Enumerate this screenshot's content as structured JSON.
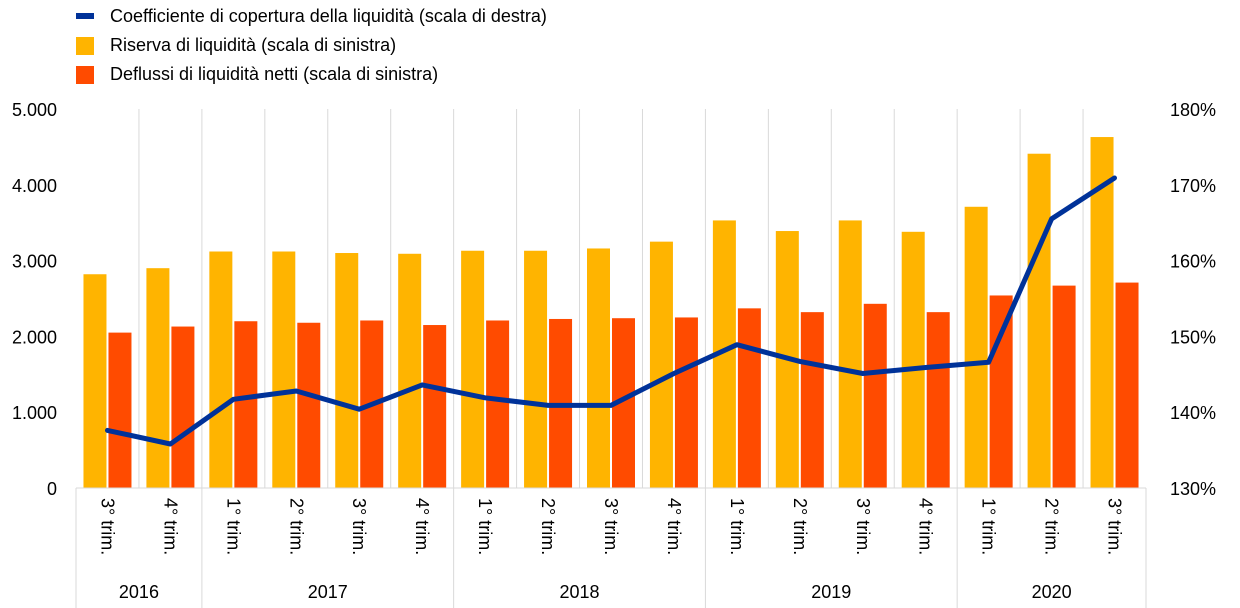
{
  "chart_data": {
    "type": "bar",
    "categories": [
      "3° trim.",
      "4° trim.",
      "1° trim.",
      "2° trim.",
      "3° trim.",
      "4° trim.",
      "1° trim.",
      "2° trim.",
      "3° trim.",
      "4° trim.",
      "1° trim.",
      "2° trim.",
      "3° trim.",
      "4° trim.",
      "1° trim.",
      "2° trim.",
      "3° trim."
    ],
    "year_groups": [
      {
        "label": "2016",
        "count": 2
      },
      {
        "label": "2017",
        "count": 4
      },
      {
        "label": "2018",
        "count": 4
      },
      {
        "label": "2019",
        "count": 4
      },
      {
        "label": "2020",
        "count": 3
      }
    ],
    "series": [
      {
        "name": "Coefficiente di copertura della liquidità (scala di destra)",
        "type": "line",
        "axis": "right",
        "color": "#003299",
        "values": [
          137.6,
          135.8,
          141.7,
          142.8,
          140.4,
          143.6,
          141.9,
          140.9,
          140.9,
          145.1,
          148.9,
          146.7,
          145.1,
          145.9,
          146.6,
          165.5,
          170.9
        ]
      },
      {
        "name": "Riserva di liquidità (scala di sinistra)",
        "type": "bar",
        "axis": "left",
        "color": "#FFB400",
        "values": [
          2820,
          2900,
          3120,
          3120,
          3100,
          3090,
          3130,
          3130,
          3160,
          3250,
          3530,
          3390,
          3530,
          3380,
          3710,
          4410,
          4630
        ]
      },
      {
        "name": "Deflussi di liquidità netti (scala di sinistra)",
        "type": "bar",
        "axis": "left",
        "color": "#FF4B00",
        "values": [
          2050,
          2130,
          2200,
          2180,
          2210,
          2150,
          2210,
          2230,
          2240,
          2250,
          2370,
          2320,
          2430,
          2320,
          2540,
          2670,
          2710
        ]
      }
    ],
    "y_left": {
      "min": 0,
      "max": 5000,
      "ticks": [
        0,
        1000,
        2000,
        3000,
        4000,
        5000
      ],
      "tick_labels": [
        "0",
        "1.000",
        "2.000",
        "3.000",
        "4.000",
        "5.000"
      ]
    },
    "y_right": {
      "min": 130,
      "max": 180,
      "ticks": [
        130,
        140,
        150,
        160,
        170,
        180
      ],
      "tick_labels": [
        "130%",
        "140%",
        "150%",
        "160%",
        "170%",
        "180%"
      ]
    },
    "grid": "vertical",
    "legend_position": "top-left"
  }
}
